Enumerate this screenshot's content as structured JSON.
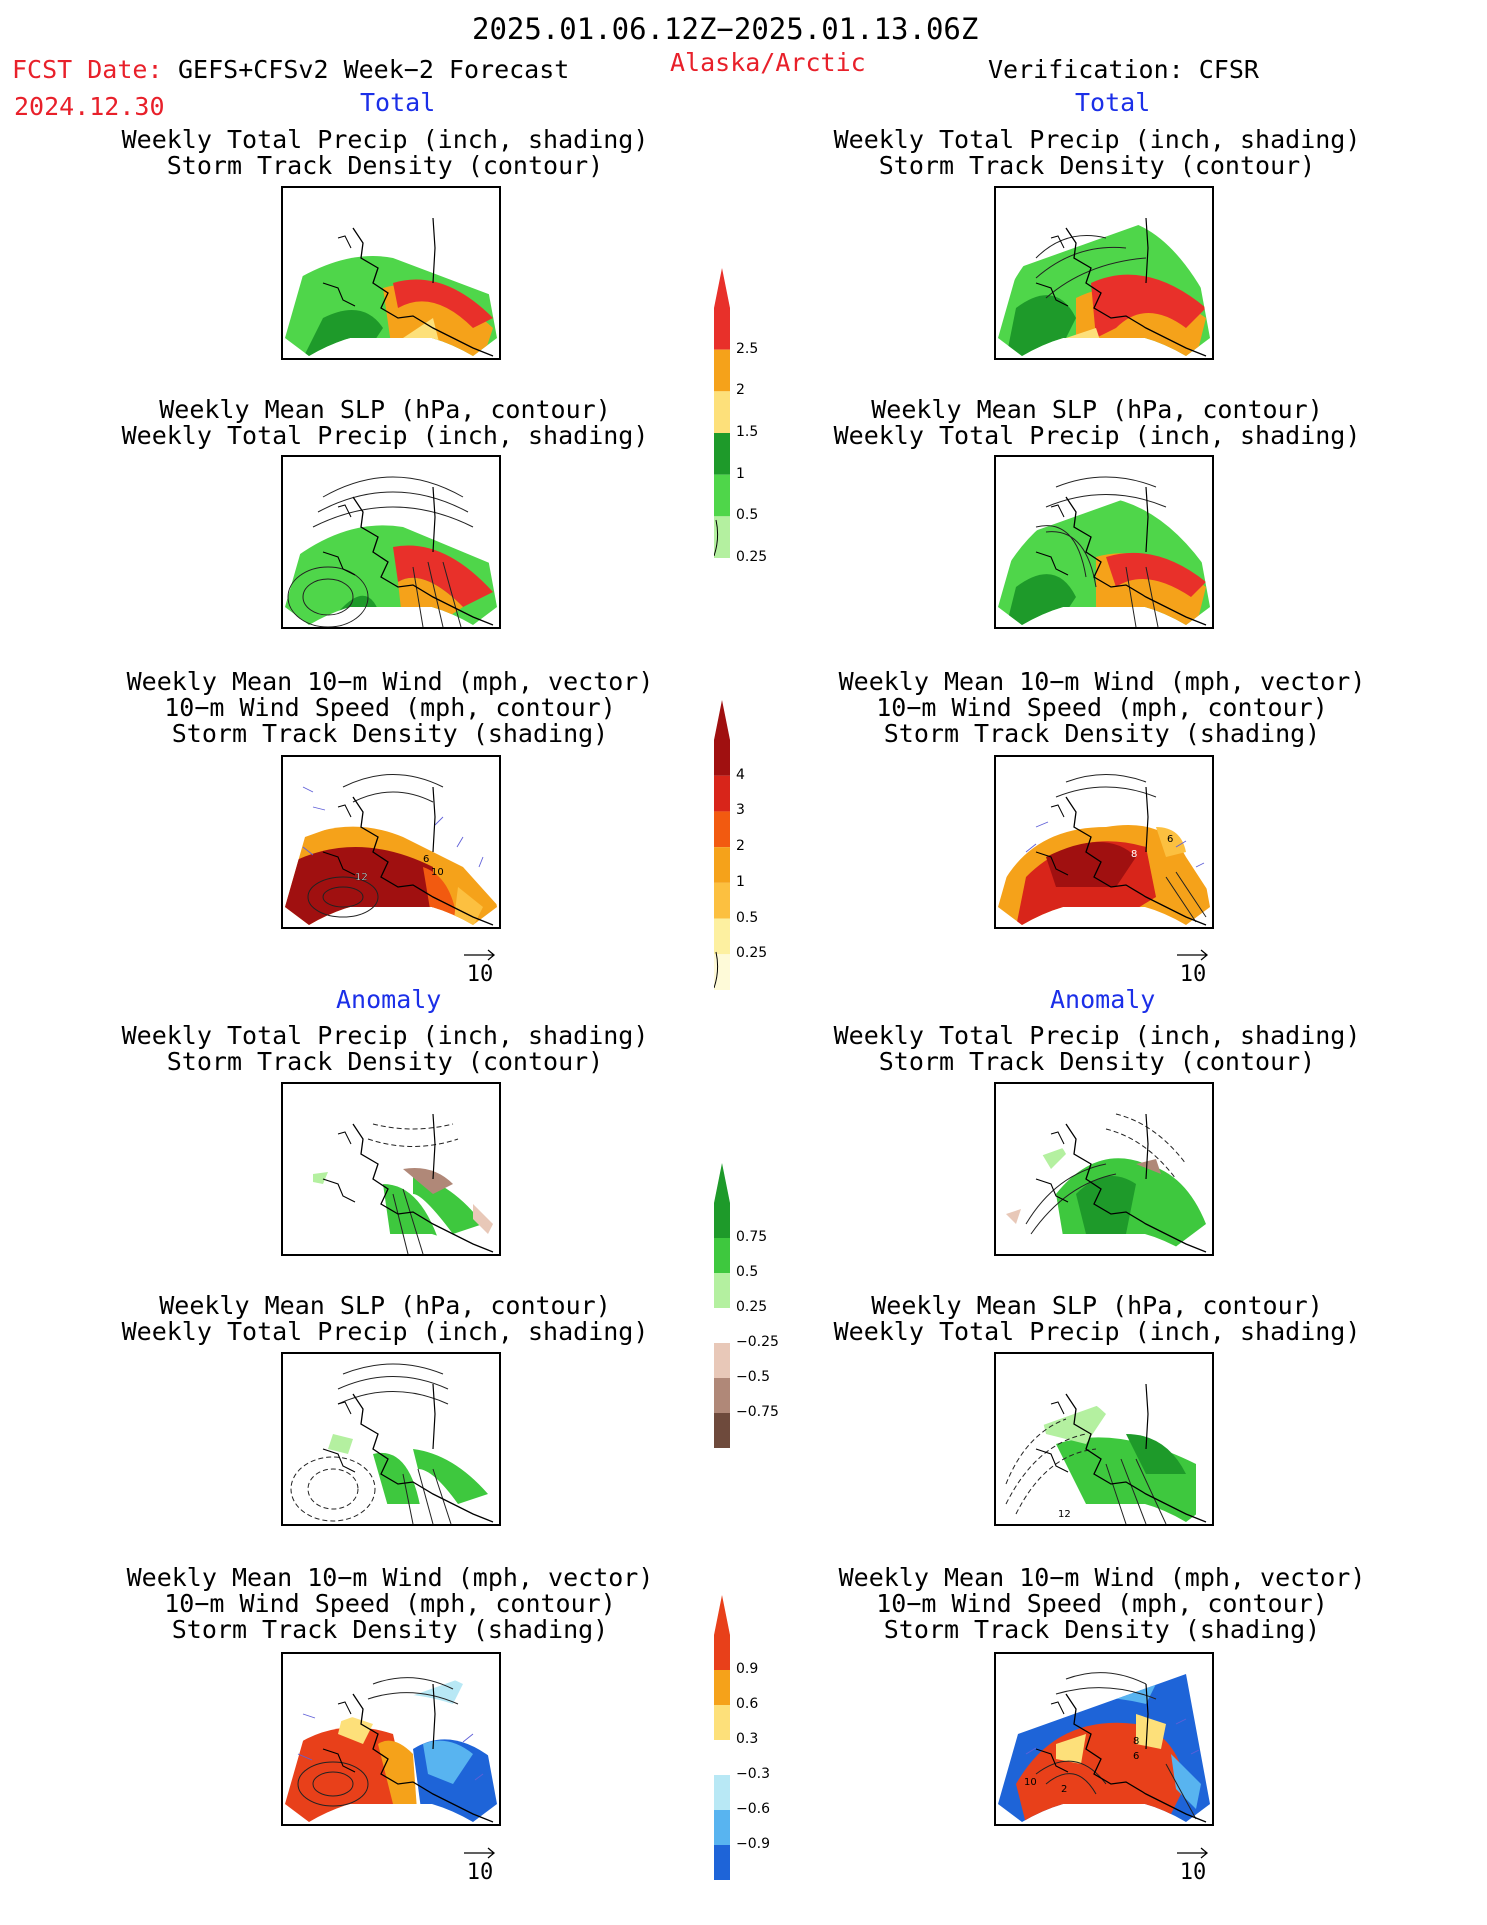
{
  "header": {
    "date_range": "2025.01.06.12Z−2025.01.13.06Z",
    "fcst_label": "FCST Date:",
    "forecast_name": "GEFS+CFSv2 Week−2 Forecast",
    "fcst_date": "2024.12.30",
    "region": "Alaska/Arctic",
    "verification": "Verification: CFSR"
  },
  "sections": {
    "total_label": "Total",
    "anomaly_label": "Anomaly"
  },
  "panel_titles": {
    "precip_storm": [
      "Weekly Total Precip (inch, shading)",
      "Storm Track Density (contour)"
    ],
    "slp_precip": [
      "Weekly Mean SLP (hPa, contour)",
      "Weekly Total Precip (inch, shading)"
    ],
    "wind_storm": [
      "Weekly Mean 10−m Wind (mph, vector)",
      "10−m Wind Speed (mph, contour)",
      "Storm Track Density (shading)"
    ]
  },
  "vector_ref": "10",
  "contour_labels": {
    "fcst_wind_total": [
      "12",
      "6",
      "10"
    ],
    "verif_wind_total": [
      "8",
      "6"
    ],
    "verif_slp_anom": [
      "12"
    ],
    "verif_wind_anom": [
      "10",
      "2",
      "6",
      "8"
    ]
  },
  "colorbars": {
    "precip_total": {
      "labels": [
        "2.5",
        "2",
        "1.5",
        "1",
        "0.5",
        "0.25"
      ],
      "colors": [
        "#e8302a",
        "#f5a21a",
        "#fde07a",
        "#1e9a2a",
        "#4fd64a",
        "#b4f0a0"
      ]
    },
    "storm_total": {
      "labels": [
        "4",
        "3",
        "2",
        "1",
        "0.5",
        "0.25"
      ],
      "colors": [
        "#a01010",
        "#d8251a",
        "#f25a10",
        "#f5a21a",
        "#fcc040",
        "#fdf0a0",
        "#fefad8"
      ]
    },
    "precip_anom": {
      "labels": [
        "0.75",
        "0.5",
        "0.25",
        "−0.25",
        "−0.5",
        "−0.75"
      ],
      "colors": [
        "#1e9a2a",
        "#3ec83e",
        "#b4f0a0",
        "#ffffff",
        "#e8c8b8",
        "#b08878",
        "#6e4a3c"
      ]
    },
    "storm_anom": {
      "labels": [
        "0.9",
        "0.6",
        "0.3",
        "−0.3",
        "−0.6",
        "−0.9"
      ],
      "colors": [
        "#e8401a",
        "#f5a21a",
        "#fde07a",
        "#ffffff",
        "#b8e8f5",
        "#58b4f0",
        "#1e64d8"
      ]
    }
  }
}
